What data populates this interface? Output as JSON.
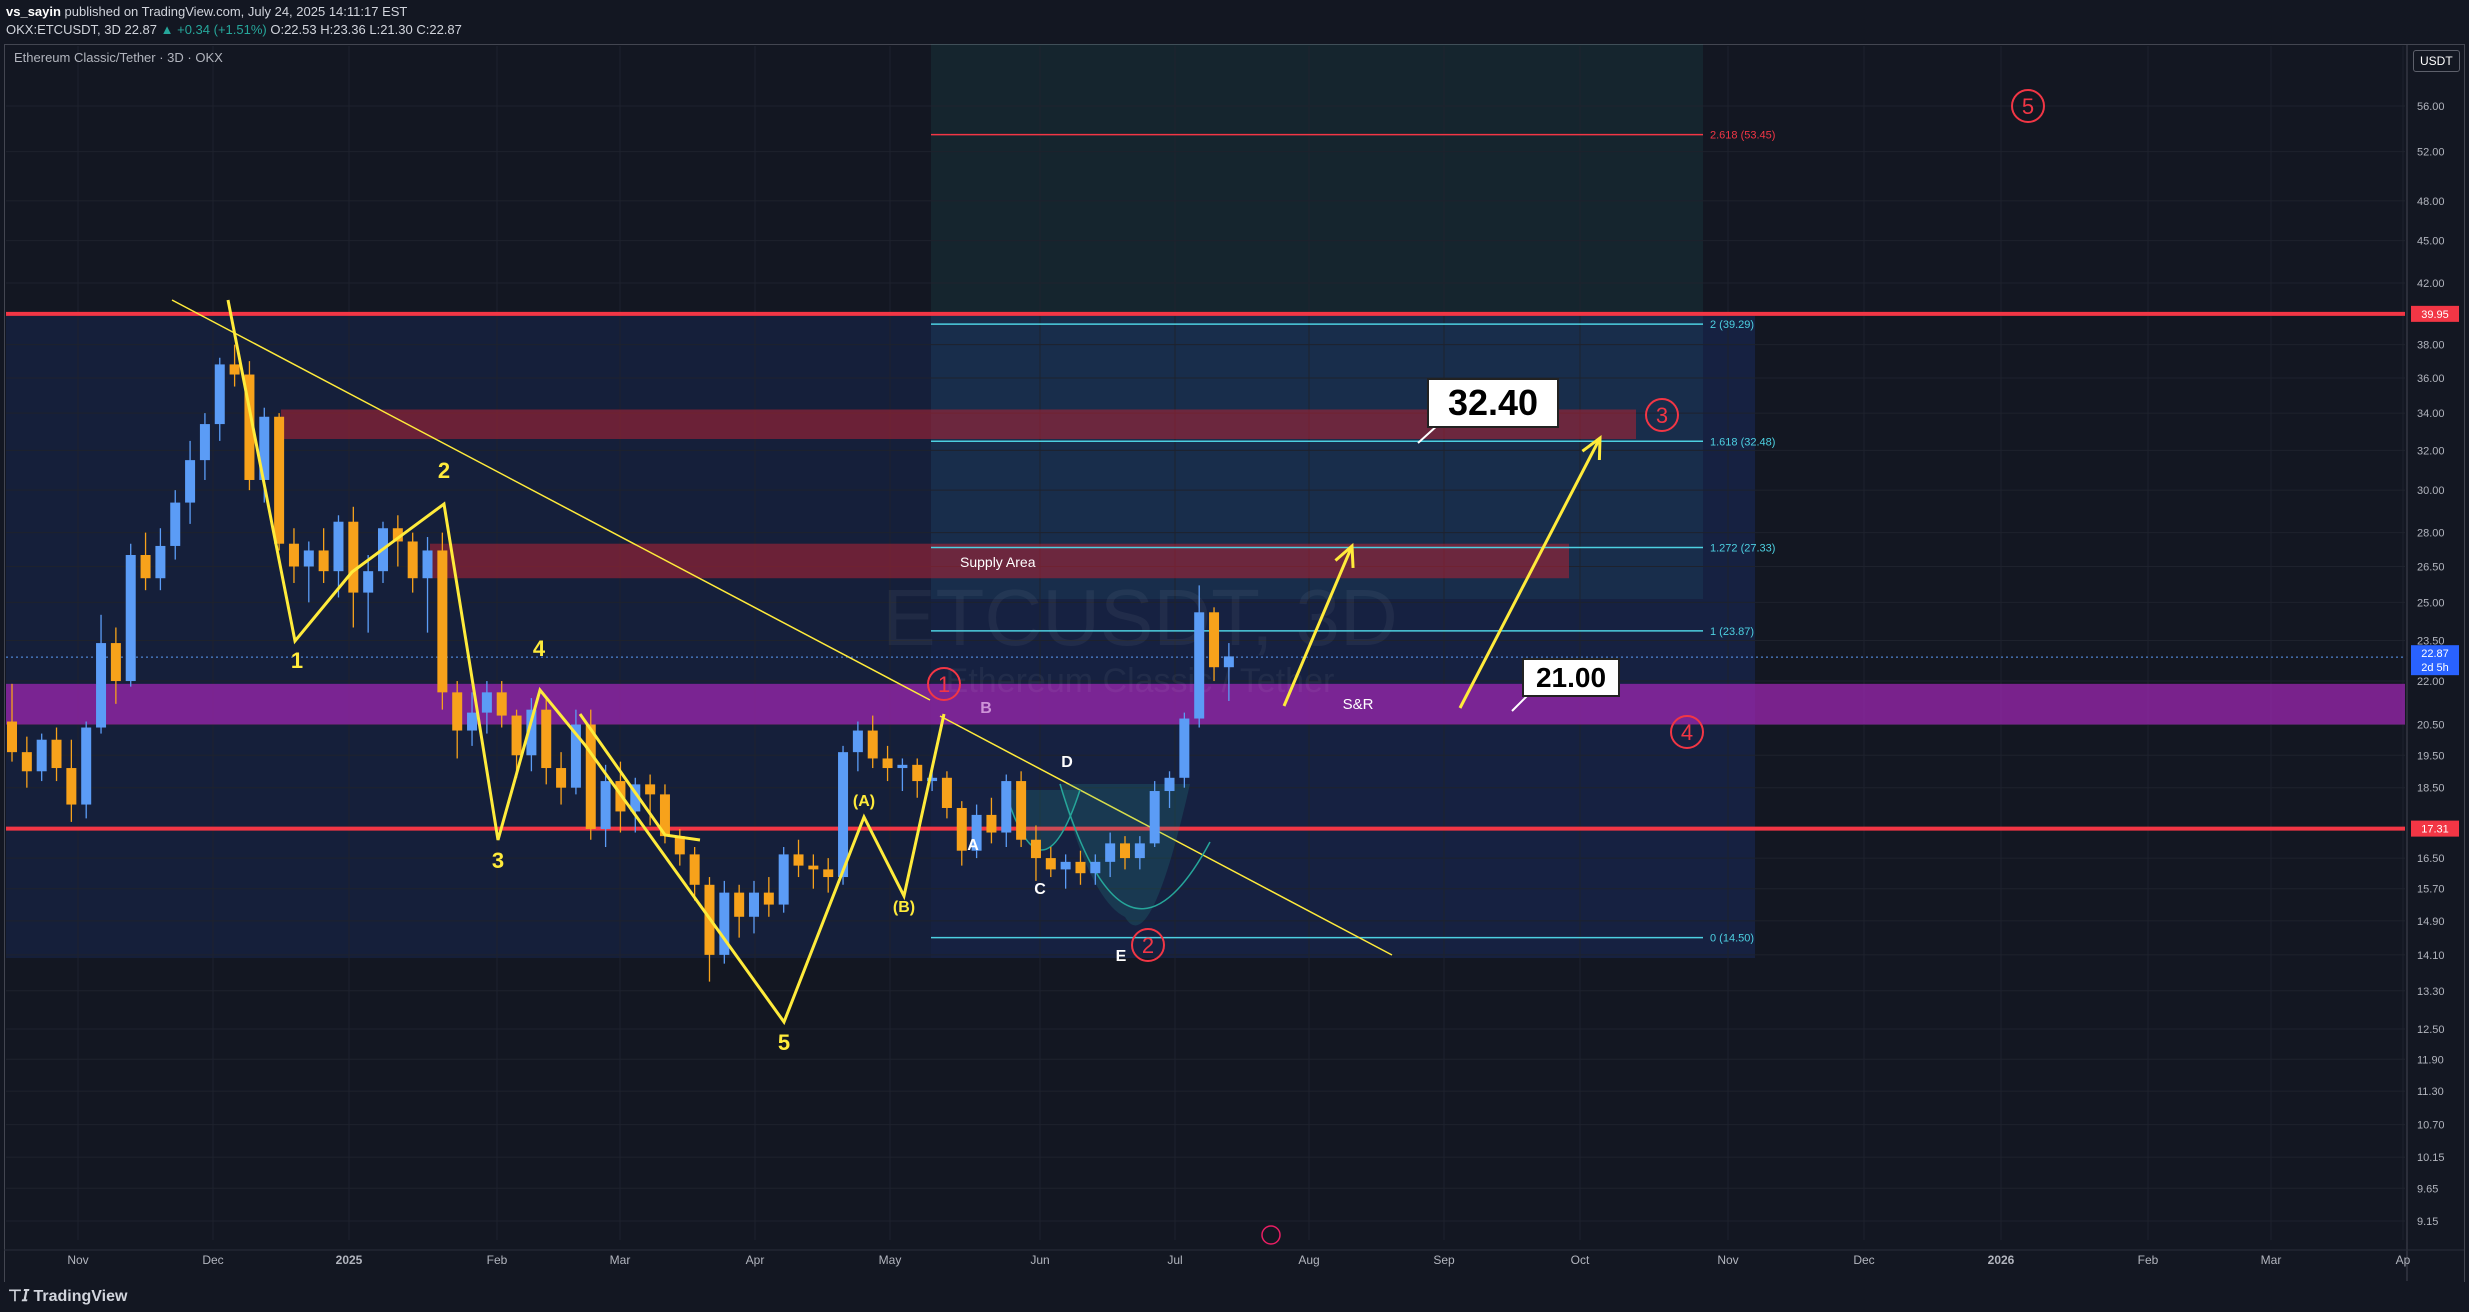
{
  "header": {
    "author": "vs_sayin",
    "published": " published on TradingView.com, July 24, 2025 14:11:17 EST",
    "symbol_line": "OKX:ETCUSDT, 3D  22.87",
    "change": "▲ +0.34 (+1.51%)",
    "ohlc": " O:22.53  H:23.36  L:21.30  C:22.87"
  },
  "chart_title": "Ethereum Classic/Tether · 3D · OKX",
  "currency": "USDT",
  "watermark": {
    "symbol": "ETCUSDT, 3D",
    "name": "Ethereum Classic / Tether"
  },
  "logo": "TradingView",
  "callouts": {
    "target": "32.40",
    "support": "21.00"
  },
  "labels": {
    "supply": "Supply Area",
    "sr": "S&R"
  },
  "colors": {
    "bull": "#5b9cf6",
    "bear": "#f7a21b",
    "wave": "#ffeb3b",
    "red_line": "#f23645",
    "fib": "#4dd0e1",
    "purple": "#9c27b0",
    "zone": "#b22234"
  },
  "chart_data": {
    "type": "candlestick",
    "x_ticks": [
      "Nov",
      "Dec",
      "2025",
      "Feb",
      "Mar",
      "Apr",
      "May",
      "Jun",
      "Jul",
      "Aug",
      "Sep",
      "Oct",
      "Nov",
      "Dec",
      "2026",
      "Feb",
      "Mar",
      "Ap"
    ],
    "y_ticks": [
      "56.00",
      "52.00",
      "48.00",
      "45.00",
      "42.00",
      "38.00",
      "36.00",
      "34.00",
      "32.00",
      "30.00",
      "28.00",
      "26.50",
      "25.00",
      "23.50",
      "22.00",
      "20.50",
      "19.50",
      "18.50",
      "16.50",
      "15.70",
      "14.90",
      "14.10",
      "13.30",
      "12.50",
      "11.90",
      "11.30",
      "10.70",
      "10.15",
      "9.65",
      "9.15"
    ],
    "y_scale": "log",
    "price_tags": [
      {
        "value": "39.95",
        "color": "#f23645"
      },
      {
        "value": "22.87",
        "color": "#2962ff"
      },
      {
        "value": "2d 5h",
        "color": "#2962ff"
      },
      {
        "value": "17.31",
        "color": "#f23645"
      }
    ],
    "horizontal_lines": [
      39.95,
      17.31
    ],
    "fibonacci": [
      {
        "ratio": "2.618 (53.45)",
        "price": 53.45,
        "color": "#f23645"
      },
      {
        "ratio": "2 (39.29)",
        "price": 39.29,
        "color": "#4dd0e1"
      },
      {
        "ratio": "1.618 (32.48)",
        "price": 32.48,
        "color": "#4dd0e1"
      },
      {
        "ratio": "1.272 (27.33)",
        "price": 27.33,
        "color": "#4dd0e1"
      },
      {
        "ratio": "1 (23.87)",
        "price": 23.87,
        "color": "#4dd0e1"
      },
      {
        "ratio": "0 (14.50)",
        "price": 14.5,
        "color": "#4dd0e1"
      }
    ],
    "zones": [
      {
        "name": "resistance-zone",
        "low": 32.6,
        "high": 34.2
      },
      {
        "name": "supply-area",
        "low": 26.0,
        "high": 27.5
      },
      {
        "name": "s-and-r",
        "low": 20.5,
        "high": 21.9
      }
    ],
    "candles": [
      [
        20.6,
        21.9,
        19.3,
        19.6
      ],
      [
        19.6,
        20.1,
        18.5,
        19.0
      ],
      [
        19.0,
        20.2,
        18.7,
        20.0
      ],
      [
        20.0,
        20.4,
        18.7,
        19.1
      ],
      [
        19.1,
        20.0,
        17.5,
        18.0
      ],
      [
        18.0,
        20.6,
        17.6,
        20.4
      ],
      [
        20.4,
        24.5,
        20.2,
        23.4
      ],
      [
        23.4,
        24.0,
        21.2,
        22.0
      ],
      [
        22.0,
        27.5,
        21.8,
        27.0
      ],
      [
        27.0,
        28.0,
        25.5,
        26.0
      ],
      [
        26.0,
        28.2,
        25.5,
        27.4
      ],
      [
        27.4,
        30.0,
        26.8,
        29.4
      ],
      [
        29.4,
        32.5,
        28.4,
        31.5
      ],
      [
        31.5,
        34.0,
        30.5,
        33.4
      ],
      [
        33.4,
        37.2,
        32.5,
        36.8
      ],
      [
        36.8,
        38.0,
        35.5,
        36.2
      ],
      [
        36.2,
        37.0,
        30.0,
        30.5
      ],
      [
        30.5,
        34.3,
        29.4,
        33.8
      ],
      [
        33.8,
        34.0,
        27.2,
        27.5
      ],
      [
        27.5,
        28.2,
        25.8,
        26.5
      ],
      [
        26.5,
        27.6,
        25.0,
        27.2
      ],
      [
        27.2,
        28.2,
        25.8,
        26.3
      ],
      [
        26.3,
        28.8,
        25.2,
        28.5
      ],
      [
        28.5,
        29.2,
        24.0,
        25.4
      ],
      [
        25.4,
        27.0,
        23.8,
        26.3
      ],
      [
        26.3,
        28.5,
        25.8,
        28.2
      ],
      [
        28.2,
        28.8,
        26.5,
        27.6
      ],
      [
        27.6,
        28.0,
        25.4,
        26.0
      ],
      [
        26.0,
        27.8,
        23.8,
        27.2
      ],
      [
        27.2,
        28.0,
        21.0,
        21.6
      ],
      [
        21.6,
        22.0,
        19.4,
        20.3
      ],
      [
        20.3,
        21.6,
        19.8,
        20.9
      ],
      [
        20.9,
        22.0,
        20.2,
        21.6
      ],
      [
        21.6,
        22.0,
        20.4,
        20.8
      ],
      [
        20.8,
        21.0,
        18.8,
        19.5
      ],
      [
        19.5,
        21.4,
        19.0,
        21.0
      ],
      [
        21.0,
        21.4,
        18.6,
        19.1
      ],
      [
        19.1,
        19.6,
        18.0,
        18.5
      ],
      [
        18.5,
        21.0,
        18.3,
        20.5
      ],
      [
        20.5,
        21.0,
        17.0,
        17.3
      ],
      [
        17.3,
        19.2,
        16.8,
        18.7
      ],
      [
        18.7,
        19.3,
        17.2,
        17.8
      ],
      [
        17.8,
        18.8,
        17.2,
        18.6
      ],
      [
        18.6,
        18.9,
        17.4,
        18.3
      ],
      [
        18.3,
        18.6,
        16.9,
        17.1
      ],
      [
        17.1,
        17.3,
        16.3,
        16.6
      ],
      [
        16.6,
        16.8,
        15.4,
        15.8
      ],
      [
        15.8,
        16.0,
        13.5,
        14.1
      ],
      [
        14.1,
        15.9,
        13.9,
        15.6
      ],
      [
        15.6,
        15.8,
        14.5,
        15.0
      ],
      [
        15.0,
        15.9,
        14.6,
        15.6
      ],
      [
        15.6,
        16.0,
        15.0,
        15.3
      ],
      [
        15.3,
        16.8,
        15.1,
        16.6
      ],
      [
        16.6,
        17.0,
        16.0,
        16.3
      ],
      [
        16.3,
        16.6,
        15.7,
        16.2
      ],
      [
        16.2,
        16.5,
        15.6,
        16.0
      ],
      [
        16.0,
        19.8,
        15.8,
        19.6
      ],
      [
        19.6,
        20.6,
        19.0,
        20.3
      ],
      [
        20.3,
        20.8,
        19.1,
        19.4
      ],
      [
        19.4,
        19.8,
        18.7,
        19.1
      ],
      [
        19.1,
        19.4,
        18.4,
        19.2
      ],
      [
        19.2,
        19.4,
        18.2,
        18.7
      ],
      [
        18.7,
        19.2,
        18.4,
        18.8
      ],
      [
        18.8,
        19.0,
        17.6,
        17.9
      ],
      [
        17.9,
        18.1,
        16.3,
        16.7
      ],
      [
        16.7,
        18.0,
        16.5,
        17.7
      ],
      [
        17.7,
        18.2,
        16.9,
        17.2
      ],
      [
        17.2,
        18.9,
        16.8,
        18.7
      ],
      [
        18.7,
        19.0,
        16.8,
        17.0
      ],
      [
        17.0,
        17.4,
        15.9,
        16.5
      ],
      [
        16.5,
        16.8,
        16.0,
        16.2
      ],
      [
        16.2,
        16.6,
        15.7,
        16.4
      ],
      [
        16.4,
        16.7,
        15.8,
        16.1
      ],
      [
        16.1,
        16.6,
        15.8,
        16.4
      ],
      [
        16.4,
        17.2,
        16.0,
        16.9
      ],
      [
        16.9,
        17.1,
        16.2,
        16.5
      ],
      [
        16.5,
        17.1,
        16.2,
        16.9
      ],
      [
        16.9,
        18.7,
        16.8,
        18.4
      ],
      [
        18.4,
        19.0,
        17.9,
        18.8
      ],
      [
        18.8,
        20.9,
        18.5,
        20.7
      ],
      [
        20.7,
        25.7,
        20.4,
        24.6
      ],
      [
        24.6,
        24.8,
        22.0,
        22.5
      ],
      [
        22.5,
        23.4,
        21.3,
        22.9
      ]
    ],
    "wave_counts": [
      {
        "label": "1",
        "x": 297,
        "y": 668,
        "color": "#ffeb3b"
      },
      {
        "label": "2",
        "x": 444,
        "y": 478,
        "color": "#ffeb3b"
      },
      {
        "label": "3",
        "x": 498,
        "y": 868,
        "color": "#ffeb3b"
      },
      {
        "label": "4",
        "x": 539,
        "y": 656,
        "color": "#ffeb3b"
      },
      {
        "label": "5",
        "x": 784,
        "y": 1050,
        "color": "#ffeb3b"
      },
      {
        "label": "(A)",
        "x": 864,
        "y": 806,
        "color": "#ffeb3b"
      },
      {
        "label": "(B)",
        "x": 904,
        "y": 912,
        "color": "#ffeb3b"
      },
      {
        "label": "A",
        "x": 973,
        "y": 850,
        "color": "#ffffff"
      },
      {
        "label": "B",
        "x": 986,
        "y": 713,
        "color": "#ce93d8"
      },
      {
        "label": "C",
        "x": 1040,
        "y": 894,
        "color": "#ffffff"
      },
      {
        "label": "D",
        "x": 1067,
        "y": 767,
        "color": "#ffffff"
      },
      {
        "label": "E",
        "x": 1121,
        "y": 961,
        "color": "#ffffff"
      }
    ],
    "circled_waves": [
      "1",
      "2",
      "3",
      "4",
      "5"
    ]
  }
}
